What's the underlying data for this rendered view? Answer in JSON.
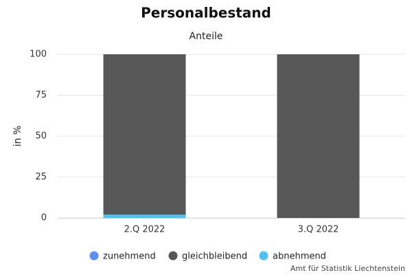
{
  "chart_data": {
    "type": "stacked_bar",
    "title": "Personalbestand",
    "subtitle": "Anteile",
    "y_label": "in %",
    "credits": "Amt für Statistik Liechtenstein",
    "categories": [
      "2.Q 2022",
      "3.Q 2022"
    ],
    "series": [
      {
        "name": "zunehmend",
        "color": "#5b8ff0",
        "values": [
          0,
          0
        ]
      },
      {
        "name": "gleichbleibend",
        "color": "#575757",
        "values": [
          98,
          100
        ]
      },
      {
        "name": "abnehmend",
        "color": "#4fc3f0",
        "values": [
          2,
          0
        ]
      }
    ],
    "ylim": [
      0,
      100
    ],
    "yticks": [
      0,
      25,
      50,
      75,
      100
    ],
    "grid": true
  }
}
